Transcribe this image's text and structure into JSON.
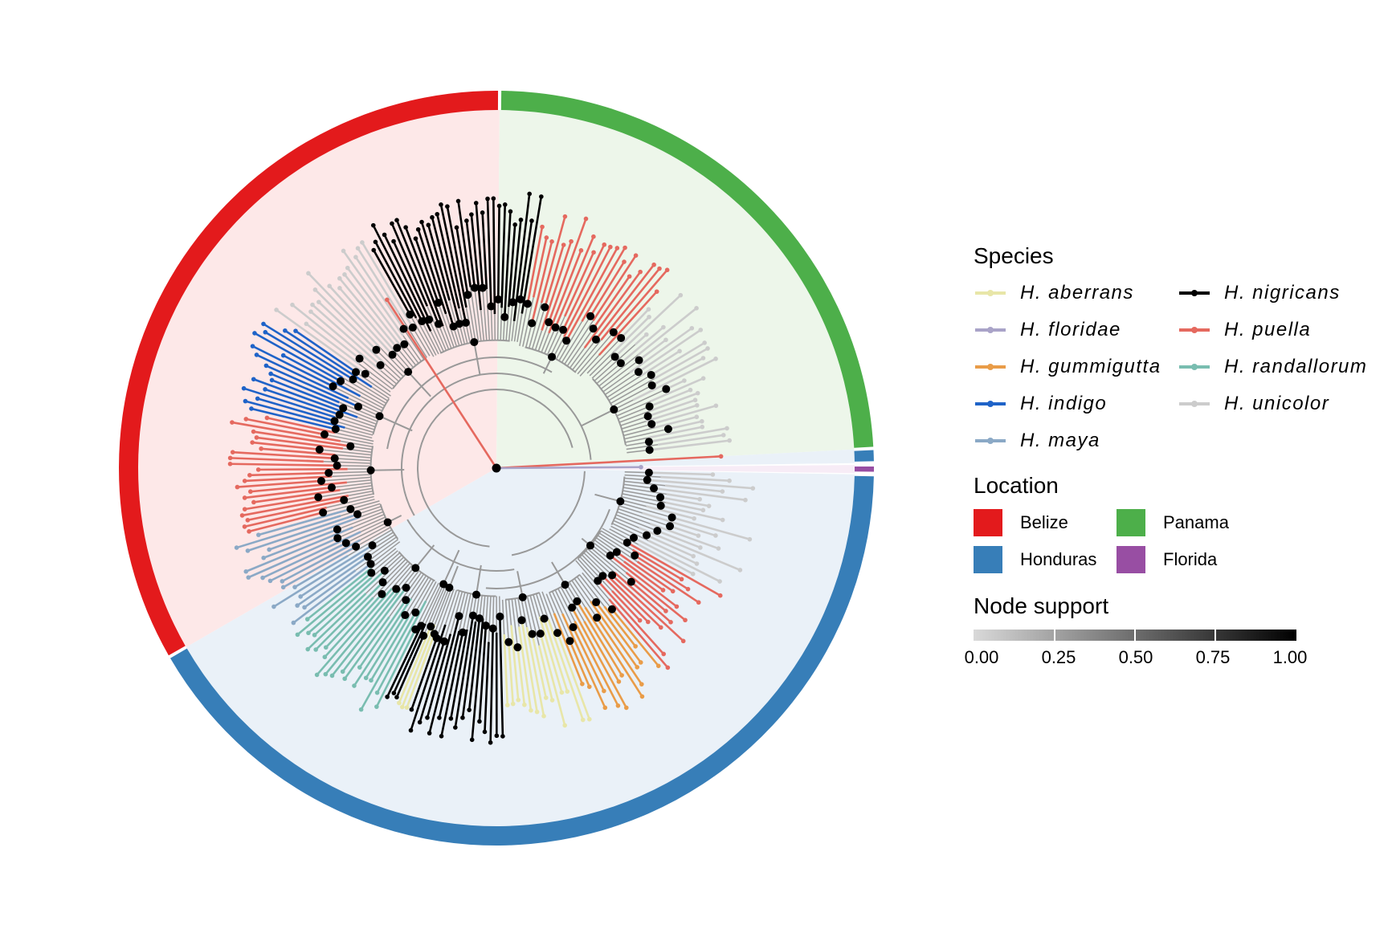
{
  "legend": {
    "species_title": "Species",
    "location_title": "Location",
    "support_title": "Node support",
    "species": [
      {
        "label": "H. aberrans",
        "color": "#e8e6a8"
      },
      {
        "label": "H. nigricans",
        "color": "#000000"
      },
      {
        "label": "H. floridae",
        "color": "#a9a3c8"
      },
      {
        "label": "H. puella",
        "color": "#e5695f"
      },
      {
        "label": "H. gummigutta",
        "color": "#e99c48"
      },
      {
        "label": "H. randallorum",
        "color": "#79bdb0"
      },
      {
        "label": "H. indigo",
        "color": "#1f63c8"
      },
      {
        "label": "H. unicolor",
        "color": "#cccccc"
      },
      {
        "label": "H. maya",
        "color": "#8ba9c6"
      }
    ],
    "locations": [
      {
        "label": "Belize",
        "color": "#e31a1c"
      },
      {
        "label": "Panama",
        "color": "#4daf4a"
      },
      {
        "label": "Honduras",
        "color": "#377eb8"
      },
      {
        "label": "Florida",
        "color": "#984ea3"
      }
    ],
    "support_ticks": [
      "0.00",
      "0.25",
      "0.50",
      "0.75",
      "1.00"
    ],
    "support_colors": [
      "#d9d9d9",
      "#000000"
    ]
  },
  "tree": {
    "root_color": "#000000",
    "branch_color": "#999999",
    "sectors": [
      {
        "location": "Belize",
        "from_deg": 150,
        "to_deg": 270.5,
        "shade": "#fde8e8"
      },
      {
        "location": "Panama",
        "from_deg": 270.5,
        "to_deg": 357,
        "shade": "#edf6ea"
      },
      {
        "location": "Honduras",
        "from_deg": 357,
        "to_deg": 359.2,
        "shade": "#eaf1f8"
      },
      {
        "location": "Florida",
        "from_deg": 359.5,
        "to_deg": 360.8,
        "shade": "#f7ecf6"
      },
      {
        "location": "Honduras",
        "from_deg": 361,
        "to_deg": 510,
        "shade": "#eaf1f8"
      }
    ],
    "clades": [
      {
        "species": "H. unicolor",
        "from_deg": 1,
        "to_deg": 29,
        "n": 20,
        "min_len": 250,
        "max_len": 330
      },
      {
        "species": "H. puella",
        "from_deg": 29,
        "to_deg": 50,
        "n": 16,
        "min_len": 250,
        "max_len": 330
      },
      {
        "species": "H. gummigutta",
        "from_deg": 50,
        "to_deg": 69,
        "n": 14,
        "min_len": 280,
        "max_len": 340
      },
      {
        "species": "H. aberrans",
        "from_deg": 69,
        "to_deg": 88,
        "n": 14,
        "min_len": 290,
        "max_len": 340
      },
      {
        "species": "H. nigricans",
        "from_deg": 88,
        "to_deg": 110,
        "n": 17,
        "min_len": 300,
        "max_len": 345
      },
      {
        "species": "H. aberrans",
        "from_deg": 110,
        "to_deg": 113,
        "n": 3,
        "min_len": 300,
        "max_len": 320
      },
      {
        "species": "H. nigricans",
        "from_deg": 113,
        "to_deg": 116,
        "n": 3,
        "min_len": 300,
        "max_len": 320
      },
      {
        "species": "H. randallorum",
        "from_deg": 116,
        "to_deg": 142,
        "n": 20,
        "min_len": 300,
        "max_len": 345
      },
      {
        "species": "H. maya",
        "from_deg": 142,
        "to_deg": 165,
        "n": 17,
        "min_len": 290,
        "max_len": 340
      },
      {
        "species": "H. puella",
        "from_deg": 165,
        "to_deg": 193,
        "n": 22,
        "min_len": 290,
        "max_len": 335
      },
      {
        "species": "H. indigo",
        "from_deg": 193,
        "to_deg": 215,
        "n": 17,
        "min_len": 300,
        "max_len": 345
      },
      {
        "species": "H. unicolor",
        "from_deg": 215,
        "to_deg": 240,
        "n": 17,
        "min_len": 290,
        "max_len": 340
      },
      {
        "species": "H. nigricans",
        "from_deg": 240,
        "to_deg": 280,
        "n": 32,
        "min_len": 300,
        "max_len": 345
      },
      {
        "species": "H. puella",
        "from_deg": 280,
        "to_deg": 313,
        "n": 22,
        "min_len": 290,
        "max_len": 330
      },
      {
        "species": "H. unicolor",
        "from_deg": 313,
        "to_deg": 354,
        "n": 27,
        "min_len": 250,
        "max_len": 320
      }
    ],
    "outliers": [
      {
        "species": "H. puella",
        "deg": 357,
        "len": 280
      },
      {
        "species": "H. floridae",
        "deg": 359.6,
        "len": 180
      },
      {
        "species": "H. puella",
        "deg": 237,
        "len": 250
      }
    ]
  }
}
